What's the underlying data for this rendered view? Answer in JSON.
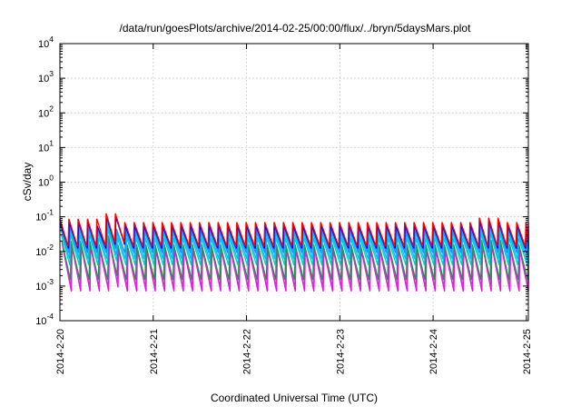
{
  "chart_data": {
    "type": "line",
    "title": "/data/run/goesPlots/archive/2014-02-25/00:00/flux/../bryn/5daysMars.plot",
    "xlabel": "Coordinated Universal Time (UTC)",
    "ylabel": "cSv/day",
    "x_ticks": [
      "2014-2-20",
      "2014-2-21",
      "2014-2-22",
      "2014-2-23",
      "2014-2-24",
      "2014-2-25"
    ],
    "xlim": [
      "2014-02-20T00:00",
      "2014-02-25T00:30"
    ],
    "yscale": "log",
    "ylim": [
      0.0001,
      10000
    ],
    "y_ticks": [
      {
        "base": "10",
        "exp": "-4"
      },
      {
        "base": "10",
        "exp": "-3"
      },
      {
        "base": "10",
        "exp": "-2"
      },
      {
        "base": "10",
        "exp": "-1"
      },
      {
        "base": "10",
        "exp": "0"
      },
      {
        "base": "10",
        "exp": "1"
      },
      {
        "base": "10",
        "exp": "2"
      },
      {
        "base": "10",
        "exp": "3"
      },
      {
        "base": "10",
        "exp": "4"
      }
    ],
    "grid": true,
    "cycle_hours": 2.4,
    "series": [
      {
        "color": "#ff00ff",
        "peak": 0.011,
        "trough": 0.0007
      },
      {
        "color": "#cc33cc",
        "peak": 0.013,
        "trough": 0.0009
      },
      {
        "color": "#2e8b57",
        "peak": 0.016,
        "trough": 0.0015
      },
      {
        "color": "#00cccc",
        "peak": 0.025,
        "trough": 0.004
      },
      {
        "color": "#00bfff",
        "peak": 0.035,
        "trough": 0.006
      },
      {
        "color": "#1e90ff",
        "peak": 0.045,
        "trough": 0.009
      },
      {
        "color": "#0000ff",
        "peak": 0.055,
        "trough": 0.012
      },
      {
        "color": "#ff0000",
        "peak": 0.07,
        "trough": 0.014
      }
    ]
  }
}
